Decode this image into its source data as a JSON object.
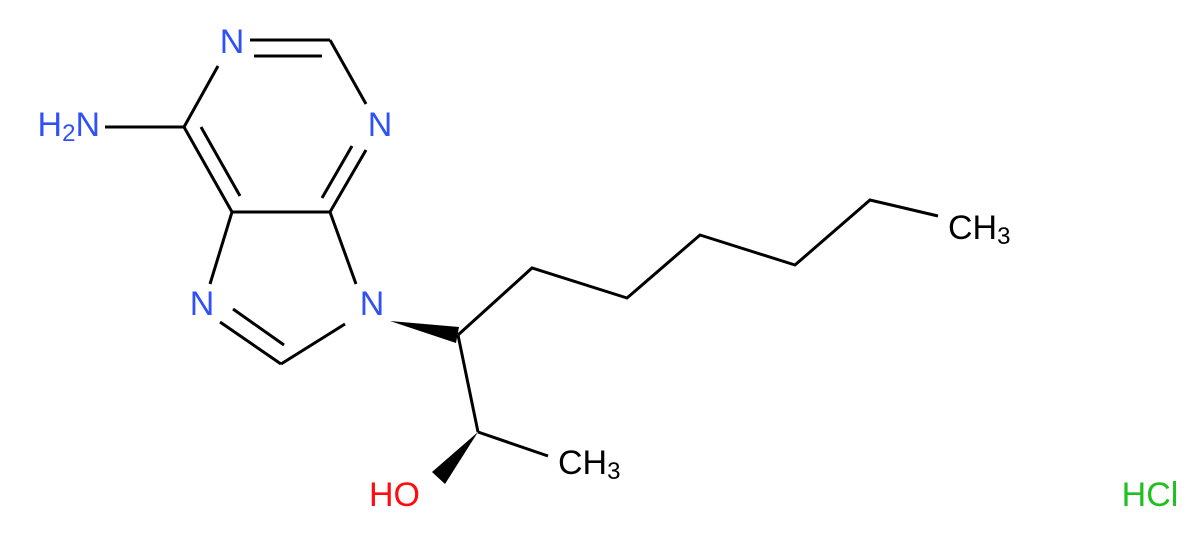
{
  "atoms": [
    {
      "label": "N"
    },
    {
      "label": "N"
    },
    {
      "label": "H2N"
    },
    {
      "label": "N"
    },
    {
      "label": "N"
    },
    {
      "label": "CH3"
    },
    {
      "label": "CH3"
    },
    {
      "label": "HO"
    }
  ],
  "salt": "HCl"
}
